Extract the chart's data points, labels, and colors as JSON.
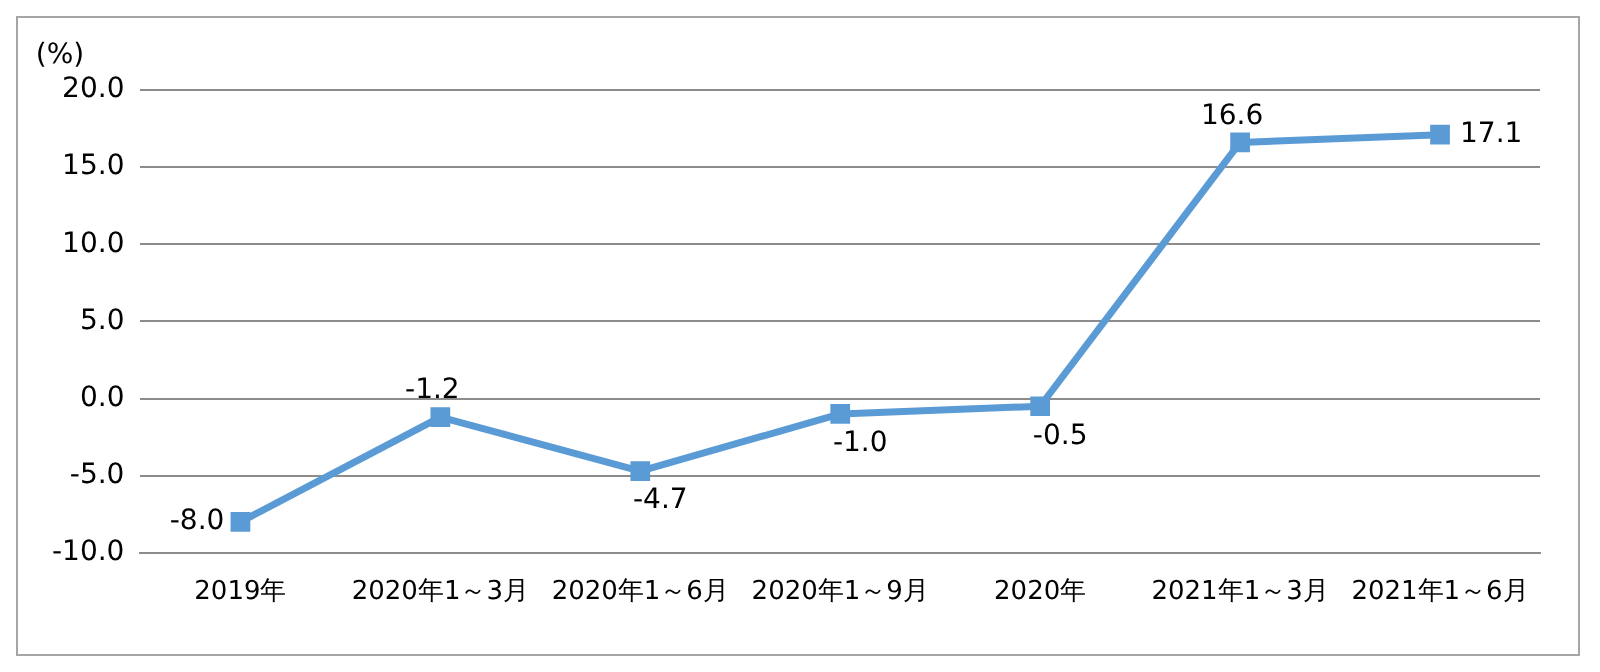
{
  "chart_data": {
    "type": "line",
    "ylabel": "(%)",
    "categories": [
      "2019年",
      "2020年1～3月",
      "2020年1～6月",
      "2020年1～9月",
      "2020年",
      "2021年1～3月",
      "2021年1～6月"
    ],
    "series": [
      {
        "color": "#5b9bd5",
        "values": [
          -8.0,
          -1.2,
          -4.7,
          -1.0,
          -0.5,
          16.6,
          17.1
        ],
        "value_labels": [
          "-8.0",
          "-1.2",
          "-4.7",
          "-1.0",
          "-0.5",
          "16.6",
          "17.1"
        ]
      }
    ],
    "ylim": [
      -10,
      20
    ],
    "yticks": [
      {
        "value": -10,
        "label": "-10.0"
      },
      {
        "value": -5,
        "label": "-5.0"
      },
      {
        "value": 0,
        "label": "0.0"
      },
      {
        "value": 5,
        "label": "5.0"
      },
      {
        "value": 10,
        "label": "10.0"
      },
      {
        "value": 15,
        "label": "15.0"
      },
      {
        "value": 20,
        "label": "20.0"
      }
    ],
    "grid": "y",
    "legend": false,
    "marker": "square",
    "line_style": "solid"
  }
}
